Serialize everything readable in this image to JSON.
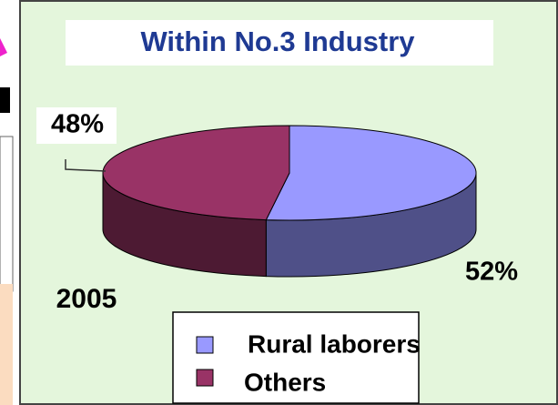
{
  "chart_data": {
    "type": "pie3d",
    "title": "Within No.3 Industry",
    "categories": [
      "Rural laborers",
      "Others"
    ],
    "values": [
      52,
      48
    ],
    "value_labels": [
      "52%",
      "48%"
    ],
    "colors": [
      "#9999ff",
      "#993366"
    ],
    "side_colors": [
      "#4f5088",
      "#4d1a33"
    ],
    "annotation": "2005",
    "legend": "bottom"
  }
}
